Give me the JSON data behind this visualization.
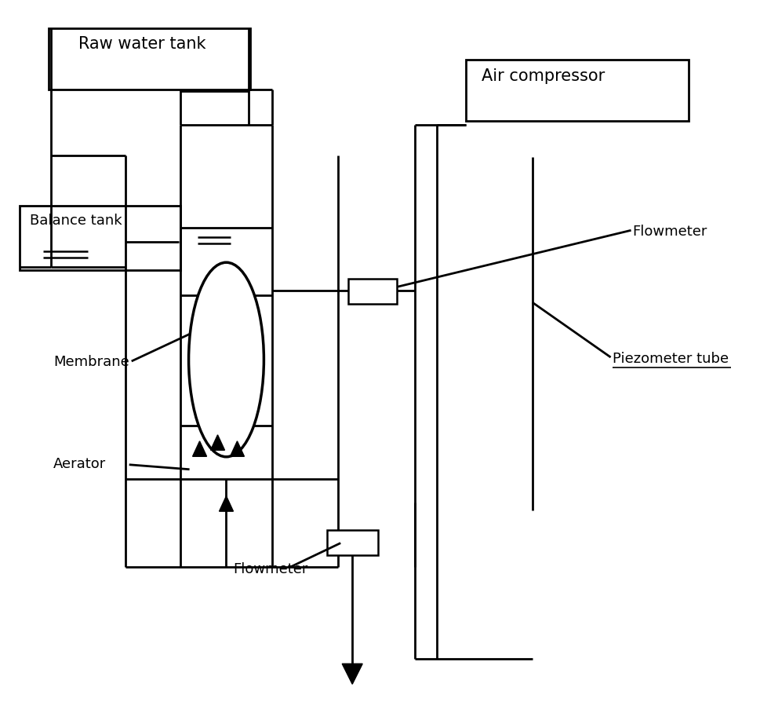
{
  "bg_color": "#ffffff",
  "line_color": "#000000",
  "lw": 2.0,
  "fig_width": 9.69,
  "fig_height": 8.94,
  "labels": {
    "raw_water_tank": "Raw water tank",
    "air_compressor": "Air compressor",
    "balance_tank": "Balance tank",
    "membrane": "Membrane",
    "aerator": "Aerator",
    "flowmeter_top": "Flowmeter",
    "flowmeter_bottom": "Flowmeter",
    "piezometer": "Piezometer tube"
  }
}
